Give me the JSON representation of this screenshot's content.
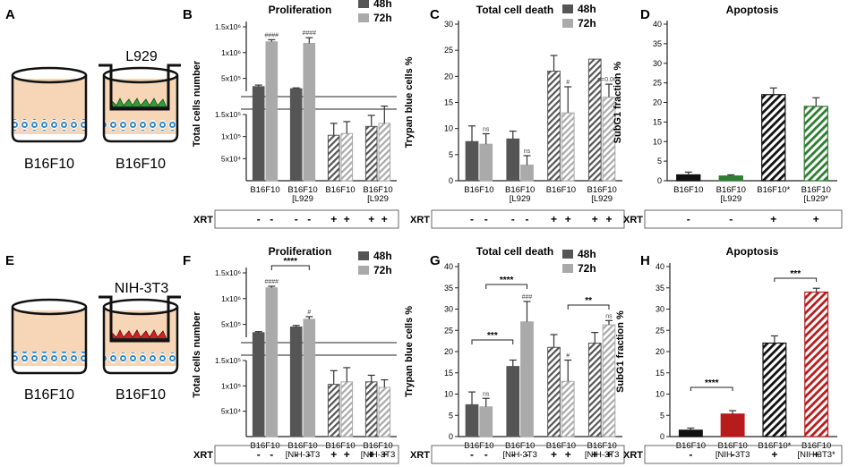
{
  "figure": {
    "panel_letters": [
      "A",
      "B",
      "C",
      "D",
      "E",
      "F",
      "G",
      "H"
    ],
    "cell_line": "B16F10",
    "insert_labels": [
      "L929",
      "NIH-3T3"
    ],
    "xrt_label": "XRT",
    "xrt_minus": "-",
    "xrt_plus": "+",
    "legend": [
      "48h",
      "72h"
    ],
    "sig": {
      "hash4": "####",
      "hash3": "###",
      "hash1": "#",
      "ns": "ns",
      "p": "p=0.067",
      "s4": "****",
      "s3": "***",
      "s2": "**"
    },
    "colors": {
      "h48": "#555555",
      "h72": "#aaaaaa",
      "black": "#111111",
      "green": "#2e7d32",
      "red": "#b71c1c",
      "cells": "#2a88c8",
      "plate": "#f6d6b6"
    }
  },
  "chart_data": [
    {
      "panel": "B",
      "type": "bar",
      "title": "Proliferation",
      "ylabel": "Total cells number",
      "axis": "broken",
      "yticks_upper": [
        "1.5x10⁶",
        "1x10⁶",
        "5x10⁵"
      ],
      "yticks_lower": [
        "1.5x10⁵",
        "1x10⁵",
        "5x10⁴"
      ],
      "ylim_upper": [
        250000,
        1500000
      ],
      "ylim_lower": [
        0,
        150000
      ],
      "categories": [
        [
          "B16F10"
        ],
        [
          "B16F10",
          "[L929"
        ],
        [
          "B16F10"
        ],
        [
          "B16F10",
          "[L929"
        ]
      ],
      "xrt": [
        "-",
        "-",
        "+",
        "+"
      ],
      "series": [
        {
          "name": "48h",
          "values": [
            340000,
            300000,
            103000,
            123000
          ],
          "err": [
            30000,
            15000,
            27000,
            25000
          ]
        },
        {
          "name": "72h",
          "values": [
            1210000,
            1180000,
            107000,
            130000
          ],
          "err": [
            40000,
            110000,
            27000,
            39000
          ]
        }
      ],
      "marks": [
        "",
        "####",
        "",
        "####",
        "",
        "",
        "",
        ""
      ]
    },
    {
      "panel": "C",
      "type": "bar",
      "title": "Total cell death",
      "ylabel": "Trypan blue cells  %",
      "yticks": [
        "0",
        "5",
        "10",
        "15",
        "20",
        "25",
        "30"
      ],
      "ylim": [
        0,
        30
      ],
      "categories": [
        [
          "B16F10"
        ],
        [
          "B16F10",
          "[L929"
        ],
        [
          "B16F10"
        ],
        [
          "B16F10",
          "[L929"
        ]
      ],
      "xrt": [
        "-",
        "-",
        "+",
        "+"
      ],
      "series": [
        {
          "name": "48h",
          "values": [
            7.5,
            8,
            21,
            23.3
          ],
          "err": [
            3,
            1.5,
            3,
            0
          ]
        },
        {
          "name": "72h",
          "values": [
            7,
            3,
            13,
            16
          ],
          "err": [
            2,
            1.8,
            5,
            2.5
          ]
        }
      ],
      "marks": [
        "",
        "ns",
        "",
        "ns",
        "",
        "#",
        "",
        "p=0.067"
      ]
    },
    {
      "panel": "D",
      "type": "bar",
      "title": "Apoptosis",
      "ylabel": "SubG1 fraction %",
      "yticks": [
        "0",
        "5",
        "10",
        "15",
        "20",
        "25",
        "30",
        "35",
        "40"
      ],
      "ylim": [
        0,
        40
      ],
      "categories": [
        [
          "B16F10"
        ],
        [
          "B16F10",
          "[L929"
        ],
        [
          "B16F10*"
        ],
        [
          "B16F10",
          "[L929*"
        ]
      ],
      "xrt": [
        "-",
        "-",
        "+",
        "+"
      ],
      "values": [
        1.5,
        1.2,
        22,
        19
      ],
      "err": [
        0.7,
        0.3,
        1.7,
        2.2
      ]
    },
    {
      "panel": "F",
      "type": "bar",
      "title": "Proliferation",
      "ylabel": "Total cells number",
      "axis": "broken",
      "yticks_upper": [
        "1.5x10⁶",
        "1x10⁶",
        "5x10⁵"
      ],
      "yticks_lower": [
        "1.5x10⁵",
        "1x10⁵",
        "5x10⁴"
      ],
      "ylim_upper": [
        250000,
        1500000
      ],
      "ylim_lower": [
        0,
        150000
      ],
      "categories": [
        [
          "B16F10"
        ],
        [
          "B16F10",
          "[NIH-3T3"
        ],
        [
          "B16F10"
        ],
        [
          "B16F10",
          "[NIH-3T3"
        ]
      ],
      "xrt": [
        "-",
        "-",
        "+",
        "+"
      ],
      "series": [
        {
          "name": "48h",
          "values": [
            340000,
            450000,
            103000,
            108000
          ],
          "err": [
            20000,
            30000,
            27000,
            13000
          ]
        },
        {
          "name": "72h",
          "values": [
            1210000,
            600000,
            108000,
            97000
          ],
          "err": [
            30000,
            50000,
            28000,
            15000
          ]
        }
      ],
      "marks": [
        "",
        "####",
        "",
        "#",
        "",
        "",
        "",
        ""
      ]
    },
    {
      "panel": "G",
      "type": "bar",
      "title": "Total cell death",
      "ylabel": "Trypan blue cells  %",
      "yticks": [
        "0",
        "5",
        "10",
        "15",
        "20",
        "25",
        "30",
        "35",
        "40"
      ],
      "ylim": [
        0,
        40
      ],
      "categories": [
        [
          "B16F10"
        ],
        [
          "B16F10",
          "[NIH-3T3"
        ],
        [
          "B16F10"
        ],
        [
          "B16F10",
          "[NIH-3T3"
        ]
      ],
      "xrt": [
        "-",
        "-",
        "+",
        "+"
      ],
      "series": [
        {
          "name": "48h",
          "values": [
            7.5,
            16.5,
            21,
            22
          ],
          "err": [
            3,
            1.5,
            3,
            2.5
          ]
        },
        {
          "name": "72h",
          "values": [
            7,
            27,
            13,
            26.3
          ],
          "err": [
            2,
            4.8,
            5,
            1
          ]
        }
      ],
      "marks": [
        "",
        "ns",
        "",
        "###",
        "",
        "#",
        "",
        "ns"
      ]
    },
    {
      "panel": "H",
      "type": "bar",
      "title": "Apoptosis",
      "ylabel": "SubG1 fraction %",
      "yticks": [
        "0",
        "5",
        "10",
        "15",
        "20",
        "25",
        "30",
        "35",
        "40"
      ],
      "ylim": [
        0,
        40
      ],
      "categories": [
        [
          "B16F10"
        ],
        [
          "B16F10",
          "[NIH-3T3"
        ],
        [
          "B16F10*"
        ],
        [
          "B16F10",
          "[NIH-3T3*"
        ]
      ],
      "xrt": [
        "-",
        "-",
        "+",
        "+"
      ],
      "values": [
        1.5,
        5.3,
        22,
        34
      ],
      "err": [
        0.5,
        0.8,
        1.7,
        0.9
      ]
    }
  ]
}
